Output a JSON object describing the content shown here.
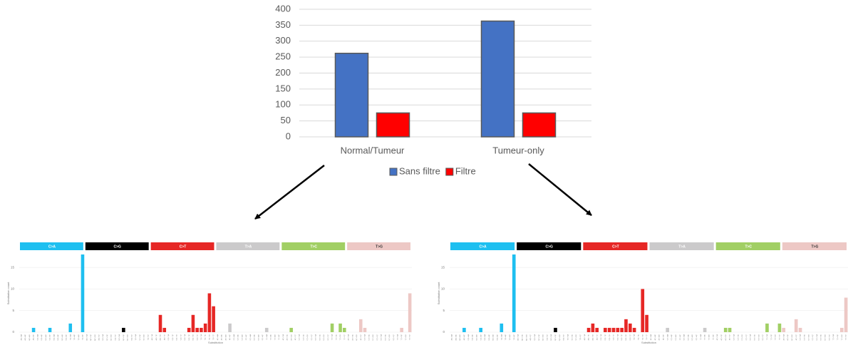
{
  "chart_data": [
    {
      "type": "bar",
      "categories": [
        "Normal/Tumeur",
        "Tumeur-only"
      ],
      "series": [
        {
          "name": "Sans filtre",
          "color": "#4472c4",
          "values": [
            262,
            363
          ]
        },
        {
          "name": "Filtre",
          "color": "#ff0000",
          "values": [
            75,
            75
          ]
        }
      ],
      "ylim": [
        0,
        400
      ],
      "yticks": [
        0,
        50,
        100,
        150,
        200,
        250,
        300,
        350,
        400
      ],
      "grid": true,
      "legend": "bottom"
    },
    {
      "type": "bar",
      "y_label": "Substitution count",
      "x_label": "Substitution",
      "groups": [
        {
          "name": "C>A",
          "color": "#1ebff0"
        },
        {
          "name": "C>G",
          "color": "#000000"
        },
        {
          "name": "C>T",
          "color": "#e62725"
        },
        {
          "name": "T>A",
          "color": "#cbcacb"
        },
        {
          "name": "T>C",
          "color": "#a1cf64"
        },
        {
          "name": "T>G",
          "color": "#edc8c5"
        }
      ],
      "categories": [
        "A[C>A]A",
        "A[C>A]C",
        "A[C>A]G",
        "A[C>A]T",
        "C[C>A]A",
        "C[C>A]C",
        "C[C>A]G",
        "C[C>A]T",
        "G[C>A]A",
        "G[C>A]C",
        "G[C>A]G",
        "G[C>A]T",
        "T[C>A]A",
        "T[C>A]C",
        "T[C>A]G",
        "T[C>A]T",
        "A[C>G]A",
        "A[C>G]C",
        "A[C>G]G",
        "A[C>G]T",
        "C[C>G]A",
        "C[C>G]C",
        "C[C>G]G",
        "C[C>G]T",
        "G[C>G]A",
        "G[C>G]C",
        "G[C>G]G",
        "G[C>G]T",
        "T[C>G]A",
        "T[C>G]C",
        "T[C>G]G",
        "T[C>G]T",
        "A[C>T]A",
        "A[C>T]C",
        "A[C>T]G",
        "A[C>T]T",
        "C[C>T]A",
        "C[C>T]C",
        "C[C>T]G",
        "C[C>T]T",
        "G[C>T]A",
        "G[C>T]C",
        "G[C>T]G",
        "G[C>T]T",
        "T[C>T]A",
        "T[C>T]C",
        "T[C>T]G",
        "T[C>T]T",
        "A[T>A]A",
        "A[T>A]C",
        "A[T>A]G",
        "A[T>A]T",
        "C[T>A]A",
        "C[T>A]C",
        "C[T>A]G",
        "C[T>A]T",
        "G[T>A]A",
        "G[T>A]C",
        "G[T>A]G",
        "G[T>A]T",
        "T[T>A]A",
        "T[T>A]C",
        "T[T>A]G",
        "T[T>A]T",
        "A[T>C]A",
        "A[T>C]C",
        "A[T>C]G",
        "A[T>C]T",
        "C[T>C]A",
        "C[T>C]C",
        "C[T>C]G",
        "C[T>C]T",
        "G[T>C]A",
        "G[T>C]C",
        "G[T>C]G",
        "G[T>C]T",
        "T[T>C]A",
        "T[T>C]C",
        "T[T>C]G",
        "T[T>C]T",
        "A[T>G]A",
        "A[T>G]C",
        "A[T>G]G",
        "A[T>G]T",
        "C[T>G]A",
        "C[T>G]C",
        "C[T>G]G",
        "C[T>G]T",
        "G[T>G]A",
        "G[T>G]C",
        "G[T>G]G",
        "G[T>G]T",
        "T[T>G]A",
        "T[T>G]C",
        "T[T>G]G",
        "T[T>G]T"
      ],
      "values": [
        0,
        0,
        0,
        1,
        0,
        0,
        0,
        1,
        0,
        0,
        0,
        0,
        2,
        0,
        0,
        18,
        0,
        0,
        0,
        0,
        0,
        0,
        0,
        0,
        0,
        1,
        0,
        0,
        0,
        0,
        0,
        0,
        0,
        0,
        4,
        1,
        0,
        0,
        0,
        0,
        0,
        1,
        4,
        1,
        1,
        2,
        9,
        6,
        0,
        0,
        0,
        2,
        0,
        0,
        0,
        0,
        0,
        0,
        0,
        0,
        1,
        0,
        0,
        0,
        0,
        0,
        1,
        0,
        0,
        0,
        0,
        0,
        0,
        0,
        0,
        0,
        2,
        0,
        2,
        1,
        0,
        0,
        0,
        3,
        1,
        0,
        0,
        0,
        0,
        0,
        0,
        0,
        0,
        1,
        0,
        9
      ],
      "ylim": [
        0,
        18
      ],
      "yticks": [
        0,
        5,
        10,
        15
      ],
      "grid": true
    },
    {
      "type": "bar",
      "y_label": "Substitution count",
      "x_label": "Substitution",
      "groups": [
        {
          "name": "C>A",
          "color": "#1ebff0"
        },
        {
          "name": "C>G",
          "color": "#000000"
        },
        {
          "name": "C>T",
          "color": "#e62725"
        },
        {
          "name": "T>A",
          "color": "#cbcacb"
        },
        {
          "name": "T>C",
          "color": "#a1cf64"
        },
        {
          "name": "T>G",
          "color": "#edc8c5"
        }
      ],
      "categories": [
        "A[C>A]A",
        "A[C>A]C",
        "A[C>A]G",
        "A[C>A]T",
        "C[C>A]A",
        "C[C>A]C",
        "C[C>A]G",
        "C[C>A]T",
        "G[C>A]A",
        "G[C>A]C",
        "G[C>A]G",
        "G[C>A]T",
        "T[C>A]A",
        "T[C>A]C",
        "T[C>A]G",
        "T[C>A]T",
        "A[C>G]A",
        "A[C>G]C",
        "A[C>G]G",
        "A[C>G]T",
        "C[C>G]A",
        "C[C>G]C",
        "C[C>G]G",
        "C[C>G]T",
        "G[C>G]A",
        "G[C>G]C",
        "G[C>G]G",
        "G[C>G]T",
        "T[C>G]A",
        "T[C>G]C",
        "T[C>G]G",
        "T[C>G]T",
        "A[C>T]A",
        "A[C>T]C",
        "A[C>T]G",
        "A[C>T]T",
        "C[C>T]A",
        "C[C>T]C",
        "C[C>T]G",
        "C[C>T]T",
        "G[C>T]A",
        "G[C>T]C",
        "G[C>T]G",
        "G[C>T]T",
        "T[C>T]A",
        "T[C>T]C",
        "T[C>T]G",
        "T[C>T]T",
        "A[T>A]A",
        "A[T>A]C",
        "A[T>A]G",
        "A[T>A]T",
        "C[T>A]A",
        "C[T>A]C",
        "C[T>A]G",
        "C[T>A]T",
        "G[T>A]A",
        "G[T>A]C",
        "G[T>A]G",
        "G[T>A]T",
        "T[T>A]A",
        "T[T>A]C",
        "T[T>A]G",
        "T[T>A]T",
        "A[T>C]A",
        "A[T>C]C",
        "A[T>C]G",
        "A[T>C]T",
        "C[T>C]A",
        "C[T>C]C",
        "C[T>C]G",
        "C[T>C]T",
        "G[T>C]A",
        "G[T>C]C",
        "G[T>C]G",
        "G[T>C]T",
        "T[T>C]A",
        "T[T>C]C",
        "T[T>C]G",
        "T[T>C]T",
        "A[T>G]A",
        "A[T>G]C",
        "A[T>G]G",
        "A[T>G]T",
        "C[T>G]A",
        "C[T>G]C",
        "C[T>G]G",
        "C[T>G]T",
        "G[T>G]A",
        "G[T>G]C",
        "G[T>G]G",
        "G[T>G]T",
        "T[T>G]A",
        "T[T>G]C",
        "T[T>G]G",
        "T[T>G]T"
      ],
      "values": [
        0,
        0,
        0,
        1,
        0,
        0,
        0,
        1,
        0,
        0,
        0,
        0,
        2,
        0,
        0,
        18,
        0,
        0,
        0,
        0,
        0,
        0,
        0,
        0,
        0,
        1,
        0,
        0,
        0,
        0,
        0,
        0,
        0,
        1,
        2,
        1,
        0,
        1,
        1,
        1,
        1,
        1,
        3,
        2,
        1,
        0,
        10,
        4,
        0,
        0,
        0,
        0,
        1,
        0,
        0,
        0,
        0,
        0,
        0,
        0,
        0,
        1,
        0,
        0,
        0,
        0,
        1,
        1,
        0,
        0,
        0,
        0,
        0,
        0,
        0,
        0,
        2,
        0,
        0,
        2,
        1,
        0,
        0,
        3,
        1,
        0,
        0,
        0,
        0,
        0,
        0,
        0,
        0,
        0,
        1,
        8
      ],
      "ylim": [
        0,
        18
      ],
      "yticks": [
        0,
        5,
        10,
        15
      ],
      "grid": true
    }
  ]
}
